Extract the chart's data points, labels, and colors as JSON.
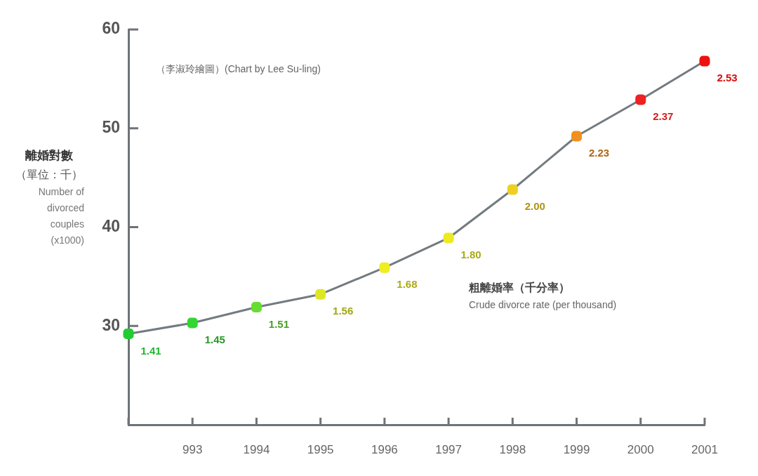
{
  "chart_data": {
    "type": "line",
    "categories": [
      null,
      "993",
      "1994",
      "1995",
      "1996",
      "1997",
      "1998",
      "1999",
      "2000",
      "2001"
    ],
    "series": [
      {
        "color": "#737b80",
        "colors": [
          "#22cc33",
          "#33d633",
          "#66dd33",
          "#dde822",
          "#eeee22",
          "#eeea22",
          "#eed022",
          "#f09020",
          "#ee2222",
          "#ee1111"
        ],
        "values": [
          29.2,
          30.3,
          31.9,
          33.2,
          35.9,
          38.9,
          43.8,
          49.2,
          52.9,
          56.8
        ]
      }
    ],
    "ylabel": "離婚對數（單位：千）\nNumber of divorced couples (x1000)",
    "annotations": [
      "（李淑玲繪圖）(Chart by Lee Su-ling)",
      "粗離婚率（千分率）\nCrude divorce rate (per thousand)",
      {
        "text": "1.41",
        "y": 29.2
      },
      {
        "text": "1.45",
        "x": "993",
        "y": 30.3
      },
      {
        "text": "1.51",
        "x": "1994",
        "y": 31.9
      },
      {
        "text": "1.56",
        "x": "1995",
        "y": 33.2
      },
      {
        "text": "1.68",
        "x": "1996",
        "y": 35.9
      },
      {
        "text": "1.80",
        "x": "1997",
        "y": 38.9
      },
      {
        "text": "2.00",
        "x": "1998",
        "y": 43.8
      },
      {
        "text": "2.23",
        "x": "1999",
        "y": 49.2
      },
      {
        "text": "2.37",
        "x": "2000",
        "y": 52.9
      },
      {
        "text": "2.53",
        "x": "2001",
        "y": 56.8
      }
    ],
    "ylim": [
      20,
      60
    ],
    "yticks": [
      30,
      40,
      50,
      60
    ],
    "marker": "square"
  }
}
